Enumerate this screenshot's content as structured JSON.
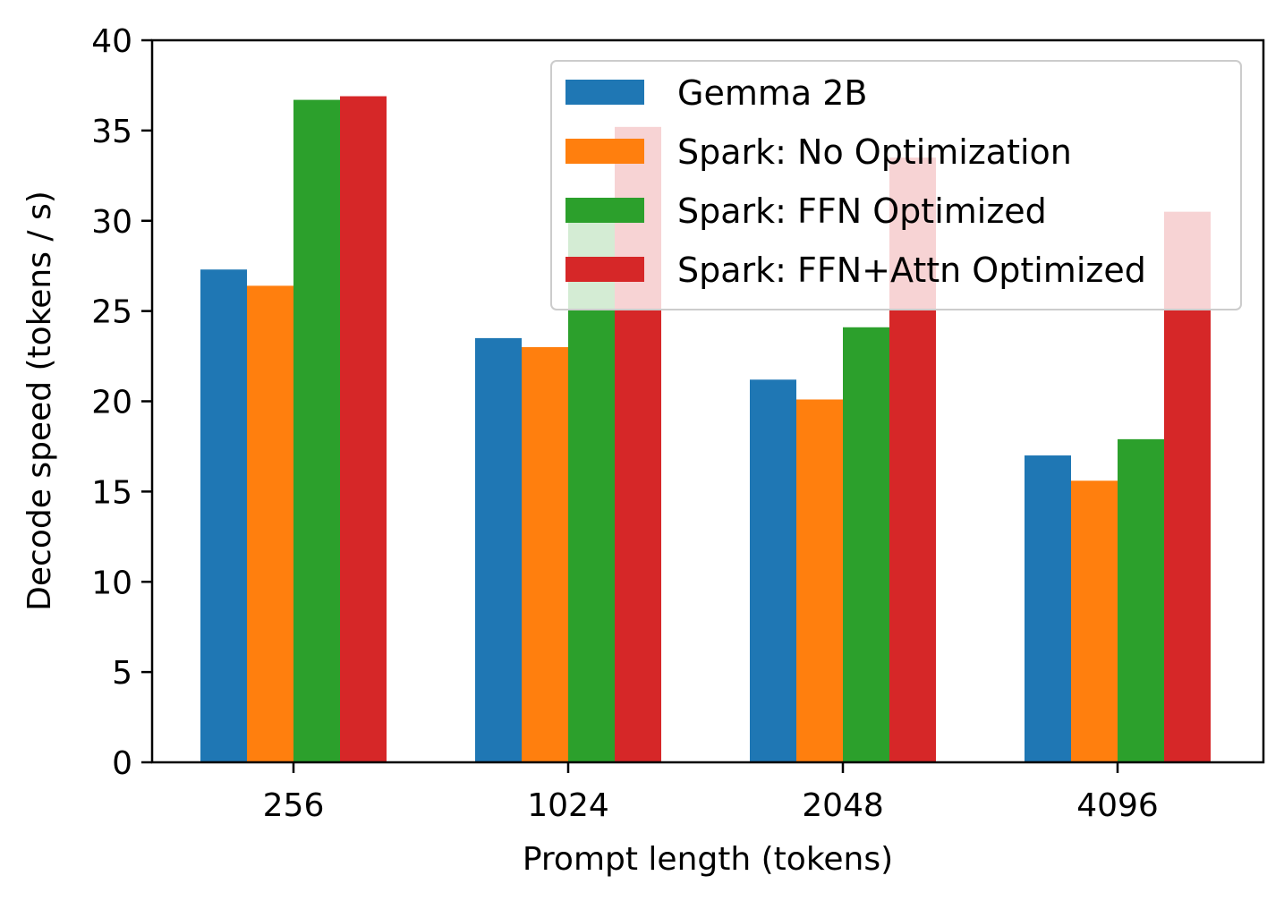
{
  "chart_data": {
    "type": "bar",
    "title": "",
    "xlabel": "Prompt length (tokens)",
    "ylabel": "Decode speed (tokens / s)",
    "ylim": [
      0,
      40
    ],
    "yticks": [
      "0",
      "5",
      "10",
      "15",
      "20",
      "25",
      "30",
      "35",
      "40"
    ],
    "categories": [
      "256",
      "1024",
      "2048",
      "4096"
    ],
    "series": [
      {
        "name": "Gemma 2B",
        "color": "#1f77b4",
        "values": [
          27.3,
          23.5,
          21.2,
          17.0
        ]
      },
      {
        "name": "Spark: No Optimization",
        "color": "#ff7f0e",
        "values": [
          26.4,
          23.0,
          20.1,
          15.6
        ]
      },
      {
        "name": "Spark: FFN Optimized",
        "color": "#2ca02c",
        "values": [
          36.7,
          30.5,
          24.1,
          17.9
        ]
      },
      {
        "name": "Spark: FFN+Attn Optimized",
        "color": "#d62728",
        "values": [
          36.9,
          35.2,
          33.5,
          30.5
        ]
      }
    ],
    "legend_position": "top-right"
  }
}
